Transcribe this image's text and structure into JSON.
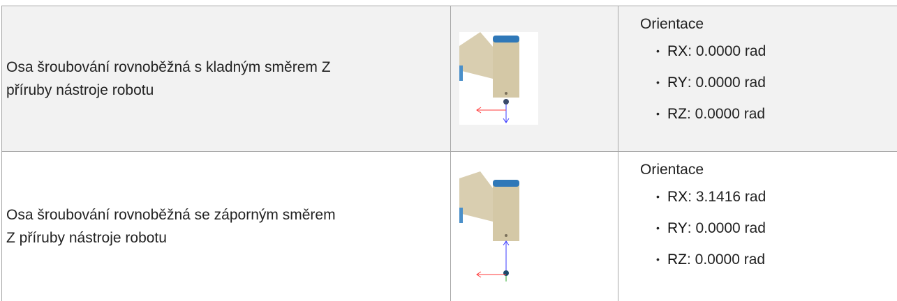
{
  "table": {
    "rows": [
      {
        "description": "Osa šroubování rovnoběžná s kladným směrem Z příruby nástroje robotu",
        "orientation_title": "Orientace",
        "items": [
          {
            "label": "RX",
            "text": ": 0.0000 rad"
          },
          {
            "label": "RY",
            "text": ": 0.0000 rad"
          },
          {
            "label": "RZ",
            "text": ": 0.0000 rad"
          }
        ]
      },
      {
        "description": "Osa šroubování rovnoběžná se záporným směrem Z příruby nástroje robotu",
        "orientation_title": "Orientace",
        "items": [
          {
            "label": "RX",
            "text": ": 3.1416 rad"
          },
          {
            "label": "RY",
            "text": ": 0.0000 rad"
          },
          {
            "label": "RZ",
            "text": ": 0.0000 rad"
          }
        ]
      }
    ]
  }
}
